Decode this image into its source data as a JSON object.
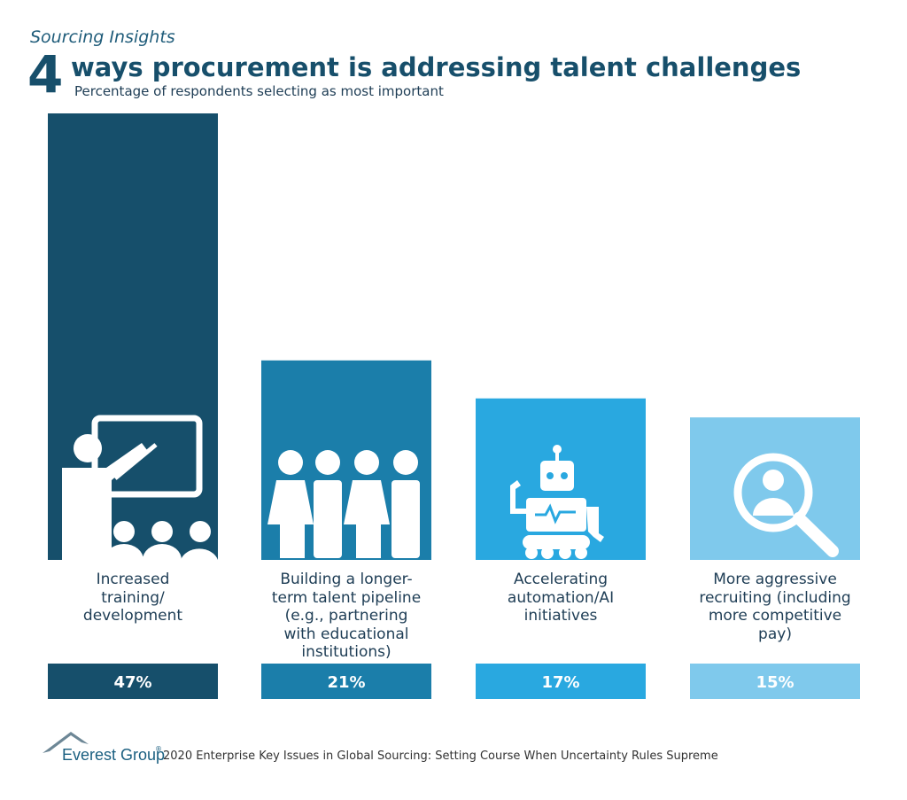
{
  "chart_data": {
    "type": "bar",
    "kicker": "Sourcing Insights",
    "title_number": "4",
    "title": "ways procurement is addressing talent challenges",
    "subtitle": "Percentage of respondents selecting as most important",
    "categories": [
      "Increased\ntraining/\ndevelopment",
      "Building a longer-\nterm talent pipeline\n(e.g., partnering\nwith educational\ninstitutions)",
      "Accelerating\nautomation/AI\ninitiatives",
      "More aggressive\nrecruiting (including\nmore competitive\npay)"
    ],
    "values": [
      47,
      21,
      17,
      15
    ],
    "value_labels": [
      "47%",
      "21%",
      "17%",
      "15%"
    ],
    "colors": [
      "#164f6b",
      "#1b7eaa",
      "#29a8e0",
      "#7fc9ec"
    ],
    "logo_text": "Everest Group",
    "registered_mark": "®",
    "source": "2020 Enterprise Key Issues in Global Sourcing: Setting Course When Uncertainty Rules Supreme"
  }
}
